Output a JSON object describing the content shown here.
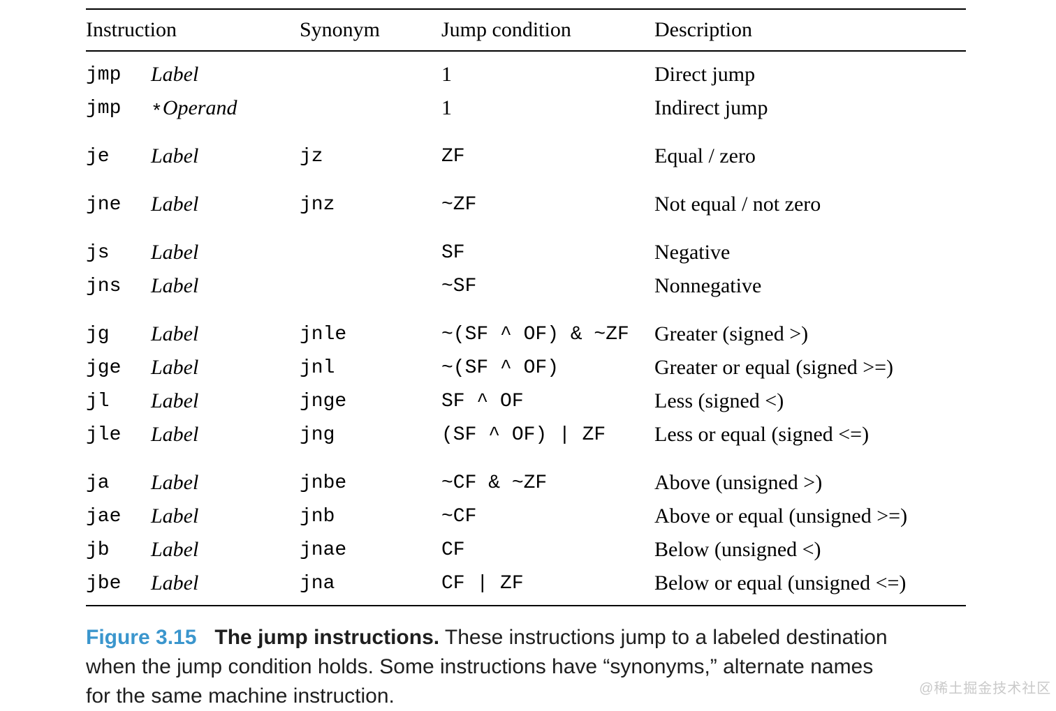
{
  "table": {
    "headers": [
      "Instruction",
      "Synonym",
      "Jump condition",
      "Description"
    ],
    "groups": [
      {
        "rows": [
          {
            "instruction": "jmp",
            "operand_prefix": "",
            "operand": "Label",
            "synonym": "",
            "condition": "1",
            "description": "Direct jump"
          },
          {
            "instruction": "jmp",
            "operand_prefix": "*",
            "operand": "Operand",
            "synonym": "",
            "condition": "1",
            "description": "Indirect jump"
          }
        ]
      },
      {
        "rows": [
          {
            "instruction": "je",
            "operand_prefix": "",
            "operand": "Label",
            "synonym": "jz",
            "condition": "ZF",
            "description": "Equal / zero"
          }
        ]
      },
      {
        "rows": [
          {
            "instruction": "jne",
            "operand_prefix": "",
            "operand": "Label",
            "synonym": "jnz",
            "condition": "~ZF",
            "description": "Not equal / not zero"
          }
        ]
      },
      {
        "rows": [
          {
            "instruction": "js",
            "operand_prefix": "",
            "operand": "Label",
            "synonym": "",
            "condition": "SF",
            "description": "Negative"
          },
          {
            "instruction": "jns",
            "operand_prefix": "",
            "operand": "Label",
            "synonym": "",
            "condition": "~SF",
            "description": "Nonnegative"
          }
        ]
      },
      {
        "rows": [
          {
            "instruction": "jg",
            "operand_prefix": "",
            "operand": "Label",
            "synonym": "jnle",
            "condition": "~(SF ^ OF) & ~ZF",
            "description": "Greater (signed >)"
          },
          {
            "instruction": "jge",
            "operand_prefix": "",
            "operand": "Label",
            "synonym": "jnl",
            "condition": "~(SF ^ OF)",
            "description": "Greater or equal (signed >=)"
          },
          {
            "instruction": "jl",
            "operand_prefix": "",
            "operand": "Label",
            "synonym": "jnge",
            "condition": "SF ^ OF",
            "description": "Less (signed <)"
          },
          {
            "instruction": "jle",
            "operand_prefix": "",
            "operand": "Label",
            "synonym": "jng",
            "condition": "(SF ^ OF) | ZF",
            "description": "Less or equal (signed <=)"
          }
        ]
      },
      {
        "rows": [
          {
            "instruction": "ja",
            "operand_prefix": "",
            "operand": "Label",
            "synonym": "jnbe",
            "condition": "~CF & ~ZF",
            "description": "Above (unsigned >)"
          },
          {
            "instruction": "jae",
            "operand_prefix": "",
            "operand": "Label",
            "synonym": "jnb",
            "condition": "~CF",
            "description": "Above or equal (unsigned >=)"
          },
          {
            "instruction": "jb",
            "operand_prefix": "",
            "operand": "Label",
            "synonym": "jnae",
            "condition": "CF",
            "description": "Below (unsigned <)"
          },
          {
            "instruction": "jbe",
            "operand_prefix": "",
            "operand": "Label",
            "synonym": "jna",
            "condition": "CF | ZF",
            "description": "Below or equal (unsigned <=)"
          }
        ]
      }
    ]
  },
  "caption": {
    "figure_label": "Figure 3.15",
    "title": "The jump instructions.",
    "lines": [
      "These instructions jump to a labeled destination",
      "when the jump condition holds. Some instructions have “synonyms,” alternate names",
      "for the same machine instruction."
    ],
    "accent_color": "#3b96cd"
  },
  "watermark": {
    "text": "@稀土掘金技术社区",
    "color": "#c9c9c9"
  }
}
